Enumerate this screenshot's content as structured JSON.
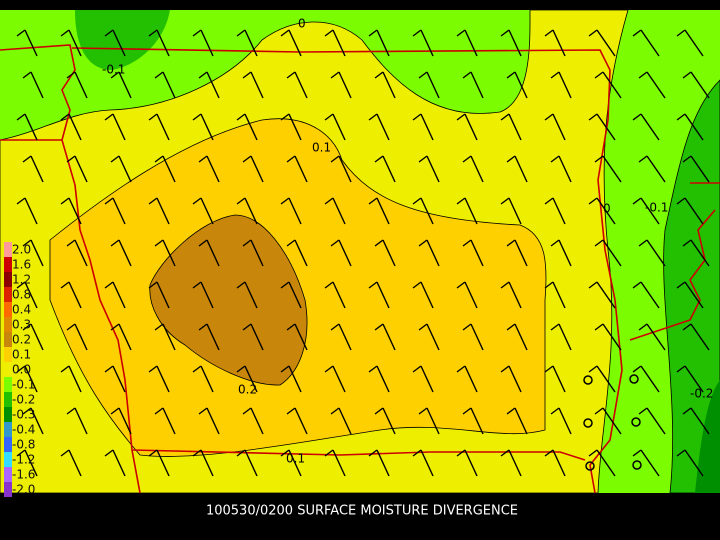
{
  "footer": {
    "title": "100530/0200 SURFACE MOISTURE DIVERGENCE"
  },
  "contour_labels": [
    "0",
    "-0.1",
    "0.1",
    "0",
    "-0.1",
    "0.2",
    "0.1",
    "-0.2"
  ],
  "legend": {
    "items": [
      {
        "label": "2.0",
        "color": "#ff9a9a"
      },
      {
        "label": "1.6",
        "color": "#cc0000"
      },
      {
        "label": "1.2",
        "color": "#8b0000"
      },
      {
        "label": "0.8",
        "color": "#dd2200"
      },
      {
        "label": "0.4",
        "color": "#ff6a00"
      },
      {
        "label": "0.3",
        "color": "#e08800"
      },
      {
        "label": "0.2",
        "color": "#c8860a"
      },
      {
        "label": "0.1",
        "color": "#ffd000"
      },
      {
        "label": "0.0",
        "color": "#eeee00"
      },
      {
        "label": "-0.1",
        "color": "#7cfc00"
      },
      {
        "label": "-0.2",
        "color": "#22c000"
      },
      {
        "label": "-0.3",
        "color": "#008f00"
      },
      {
        "label": "-0.4",
        "color": "#3399cc"
      },
      {
        "label": "-0.8",
        "color": "#3366ff"
      },
      {
        "label": "-1.2",
        "color": "#33ddff"
      },
      {
        "label": "-1.6",
        "color": "#aa66ff"
      },
      {
        "label": "-2.0",
        "color": "#8833cc"
      }
    ]
  }
}
